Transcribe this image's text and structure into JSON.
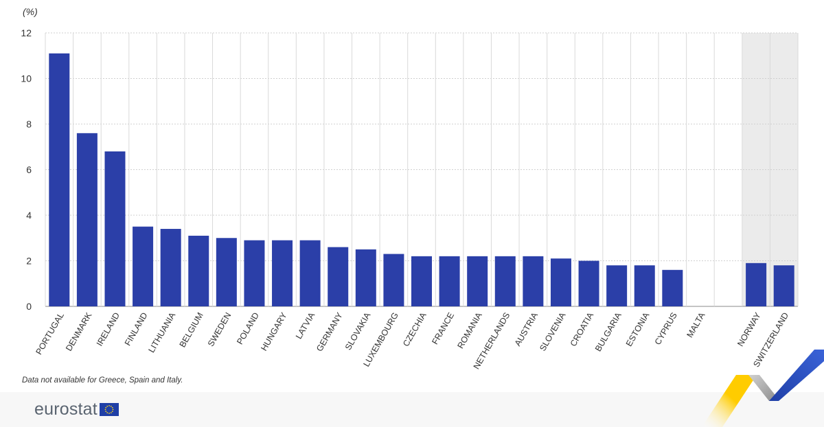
{
  "chart_data": {
    "type": "bar",
    "unit_label": "(%)",
    "categories": [
      "PORTUGAL",
      "DENMARK",
      "IRELAND",
      "FINLAND",
      "LITHUANIA",
      "BELGIUM",
      "SWEDEN",
      "POLAND",
      "HUNGARY",
      "LATVIA",
      "GERMANY",
      "SLOVAKIA",
      "LUXEMBOURG",
      "CZECHIA",
      "FRANCE",
      "ROMANIA",
      "NETHERLANDS",
      "AUSTRIA",
      "SLOVENIA",
      "CROATIA",
      "BULGARIA",
      "ESTONIA",
      "CYPRUS",
      "MALTA",
      "",
      "NORWAY",
      "SWITZERLAND"
    ],
    "values": [
      11.1,
      7.6,
      6.8,
      3.5,
      3.4,
      3.1,
      3.0,
      2.9,
      2.9,
      2.9,
      2.6,
      2.5,
      2.3,
      2.2,
      2.2,
      2.2,
      2.2,
      2.2,
      2.1,
      2.0,
      1.8,
      1.8,
      1.6,
      0,
      null,
      1.9,
      1.8
    ],
    "yticks": [
      0,
      2,
      4,
      6,
      8,
      10,
      12
    ],
    "ylim": [
      0,
      12
    ],
    "grid": true,
    "highlight_categories": [
      "NORWAY",
      "SWITZERLAND"
    ],
    "bar_color": "#2b3fa8",
    "highlight_bg": "#ebebeb"
  },
  "note": "Data not available for Greece, Spain and Italy.",
  "brand": {
    "name": "eurostat",
    "text_color": "#5a6470",
    "flag_color": "#1f3fa6",
    "star_color": "#ffd617",
    "swoosh_colors": [
      "#ffcc00",
      "#1f3fa6",
      "#b9b9b9"
    ]
  }
}
